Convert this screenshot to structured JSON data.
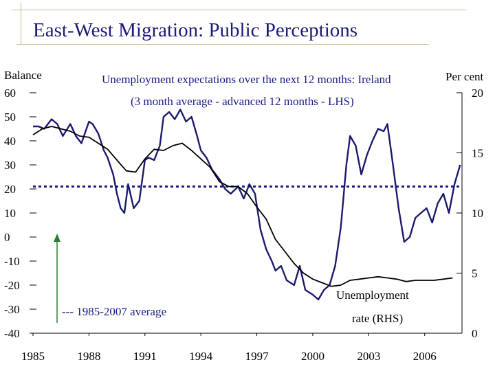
{
  "chart_data": {
    "type": "line",
    "title": "East-West Migration: Public Perceptions",
    "subtitle_line1": "Unemployment expectations over the next 12 months: Ireland",
    "subtitle_line2": "(3 month average - advanced 12 months - LHS)",
    "left_axis_label": "Balance",
    "right_axis_label": "Per cent",
    "series_label_rhs": [
      "Unemployment",
      "rate (RHS)"
    ],
    "average_label": "--- 1985-2007 average",
    "average_value_lhs": 21,
    "colors": {
      "expectations": "#1a1a6e",
      "unemployment": "#000000",
      "average": "#1a1a8a",
      "arrow": "#2e7d32",
      "decor": "#c8b98a"
    },
    "x_range": [
      1985,
      2008
    ],
    "x_ticks": [
      "1985",
      "1988",
      "1991",
      "1994",
      "1997",
      "2000",
      "2003",
      "2006"
    ],
    "y_left": {
      "min": -40,
      "max": 60,
      "ticks": [
        "60",
        "50",
        "40",
        "30",
        "20",
        "10",
        "0",
        "-10",
        "-20",
        "-30",
        "-40"
      ]
    },
    "y_right": {
      "min": 0,
      "max": 20,
      "ticks": [
        "20",
        "15",
        "10",
        "5",
        "0"
      ]
    },
    "series": [
      {
        "name": "Unemployment expectations (LHS, balance)",
        "axis": "left",
        "x": [
          1985.0,
          1985.3,
          1985.6,
          1986.0,
          1986.3,
          1986.6,
          1987.0,
          1987.3,
          1987.6,
          1988.0,
          1988.2,
          1988.5,
          1988.8,
          1989.0,
          1989.3,
          1989.5,
          1989.7,
          1989.9,
          1990.1,
          1990.4,
          1990.7,
          1991.0,
          1991.2,
          1991.5,
          1991.8,
          1992.0,
          1992.3,
          1992.6,
          1992.9,
          1993.2,
          1993.5,
          1993.8,
          1994.0,
          1994.3,
          1994.6,
          1995.0,
          1995.3,
          1995.6,
          1996.0,
          1996.3,
          1996.6,
          1996.9,
          1997.2,
          1997.5,
          1997.8,
          1998.0,
          1998.3,
          1998.6,
          1999.0,
          1999.3,
          1999.6,
          2000.0,
          2000.3,
          2000.6,
          2000.9,
          2001.2,
          2001.5,
          2001.8,
          2002.0,
          2002.3,
          2002.6,
          2002.9,
          2003.2,
          2003.5,
          2003.8,
          2004.0,
          2004.3,
          2004.6,
          2004.9,
          2005.2,
          2005.5,
          2005.8,
          2006.1,
          2006.4,
          2006.7,
          2007.0,
          2007.3,
          2007.6,
          2007.9
        ],
        "values": [
          46,
          46,
          45,
          49,
          47,
          42,
          47,
          42,
          39,
          48,
          47,
          43,
          36,
          33,
          26,
          18,
          12,
          10,
          22,
          12,
          15,
          32,
          33,
          32,
          38,
          50,
          52,
          49,
          53,
          48,
          50,
          42,
          36,
          33,
          28,
          24,
          20,
          18,
          21,
          16,
          22,
          18,
          3,
          -5,
          -10,
          -14,
          -12,
          -18,
          -20,
          -12,
          -22,
          -24,
          -26,
          -22,
          -20,
          -12,
          4,
          30,
          42,
          38,
          26,
          34,
          40,
          45,
          44,
          47,
          30,
          12,
          -2,
          0,
          8,
          10,
          12,
          6,
          14,
          18,
          10,
          22,
          30
        ]
      },
      {
        "name": "Unemployment rate (RHS, per cent)",
        "axis": "right",
        "x": [
          1985.0,
          1985.5,
          1986.0,
          1986.5,
          1987.0,
          1987.5,
          1988.0,
          1988.5,
          1989.0,
          1989.5,
          1990.0,
          1990.5,
          1991.0,
          1991.5,
          1992.0,
          1992.5,
          1993.0,
          1993.5,
          1994.0,
          1994.5,
          1995.0,
          1995.5,
          1996.0,
          1996.5,
          1997.0,
          1997.5,
          1998.0,
          1998.5,
          1999.0,
          1999.5,
          2000.0,
          2000.5,
          2001.0,
          2001.5,
          2002.0,
          2002.5,
          2003.0,
          2003.5,
          2004.0,
          2004.5,
          2005.0,
          2005.5,
          2006.0,
          2006.5,
          2007.0,
          2007.5
        ],
        "values": [
          16.5,
          17.0,
          17.2,
          17.0,
          16.8,
          16.4,
          16.3,
          15.8,
          15.3,
          14.4,
          13.5,
          13.4,
          14.5,
          15.3,
          15.2,
          15.6,
          15.8,
          15.2,
          14.5,
          13.8,
          12.6,
          12.2,
          12.2,
          11.6,
          10.5,
          9.5,
          7.8,
          6.8,
          5.8,
          5.0,
          4.5,
          4.2,
          3.9,
          4.0,
          4.4,
          4.5,
          4.6,
          4.7,
          4.6,
          4.5,
          4.3,
          4.4,
          4.4,
          4.4,
          4.5,
          4.6
        ]
      }
    ],
    "marker_label_years": [
      "1985",
      "2007"
    ]
  }
}
